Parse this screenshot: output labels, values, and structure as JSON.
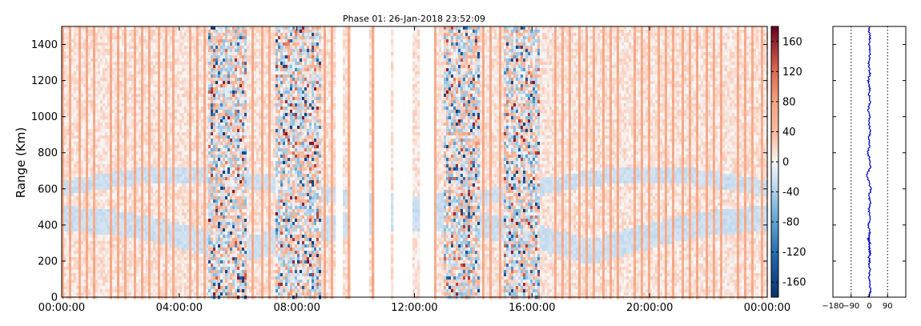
{
  "chart_data": [
    {
      "type": "heatmap",
      "title": "Phase 01: 26-Jan-2018 23:52:09",
      "xlabel": "",
      "ylabel": "Range (Km)",
      "x_tick_labels": [
        "00:00:00",
        "04:00:00",
        "08:00:00",
        "12:00:00",
        "16:00:00",
        "20:00:00",
        "00:00:00"
      ],
      "x_range_hours": [
        0,
        24
      ],
      "y_ticks": [
        0,
        200,
        400,
        600,
        800,
        1000,
        1200,
        1400
      ],
      "ylim": [
        0,
        1500
      ],
      "colorbar": {
        "colormap": "RdBu_r",
        "vmin": -180,
        "vmax": 180,
        "ticks": [
          -160,
          -120,
          -80,
          -40,
          0,
          40,
          80,
          120,
          160
        ],
        "colors": {
          "low": "#08306b",
          "mid": "#f7f7f7",
          "high": "#67001f"
        }
      },
      "empty_time_gaps_hours": [
        [
          9.3,
          9.6
        ],
        [
          9.8,
          10.5
        ],
        [
          10.6,
          11.2
        ],
        [
          11.3,
          11.9
        ],
        [
          12.2,
          12.7
        ]
      ],
      "noisy_periods_hours": [
        [
          5.0,
          6.3
        ],
        [
          7.3,
          8.8
        ],
        [
          13.0,
          14.2
        ],
        [
          15.0,
          16.3
        ]
      ],
      "periodic_stripe_spacing_hours": 0.27,
      "grid": false,
      "legend": "none"
    },
    {
      "type": "line",
      "title": "",
      "xlabel": "",
      "ylabel": "",
      "x_tick_labels": [
        "−180",
        "−90",
        "0",
        "90"
      ],
      "x_ticks": [
        -180,
        -90,
        0,
        90
      ],
      "xlim": [
        -180,
        180
      ],
      "ylim": [
        0,
        1500
      ],
      "reference_lines": [
        -90,
        90
      ],
      "series": [
        {
          "color": "#0000cc",
          "x": [
            2,
            -3,
            4,
            -2,
            5,
            0,
            -4,
            3,
            -6,
            2,
            -1,
            4,
            -5,
            1,
            -2,
            5,
            -3,
            0,
            -8,
            3,
            6,
            -12,
            -4,
            8,
            -2,
            4,
            -3,
            5,
            -6,
            2,
            0,
            -4,
            3,
            -2,
            1,
            5,
            -3,
            2,
            -1,
            4,
            -2,
            0,
            3,
            6,
            -4
          ],
          "y": [
            1500,
            1475,
            1440,
            1400,
            1360,
            1320,
            1280,
            1240,
            1200,
            1160,
            1120,
            1080,
            1040,
            1000,
            960,
            920,
            880,
            840,
            800,
            760,
            720,
            680,
            640,
            600,
            560,
            520,
            480,
            440,
            400,
            360,
            340,
            320,
            300,
            280,
            260,
            240,
            220,
            200,
            180,
            150,
            120,
            90,
            60,
            30,
            0
          ]
        }
      ],
      "grid": false,
      "legend": "none"
    }
  ]
}
